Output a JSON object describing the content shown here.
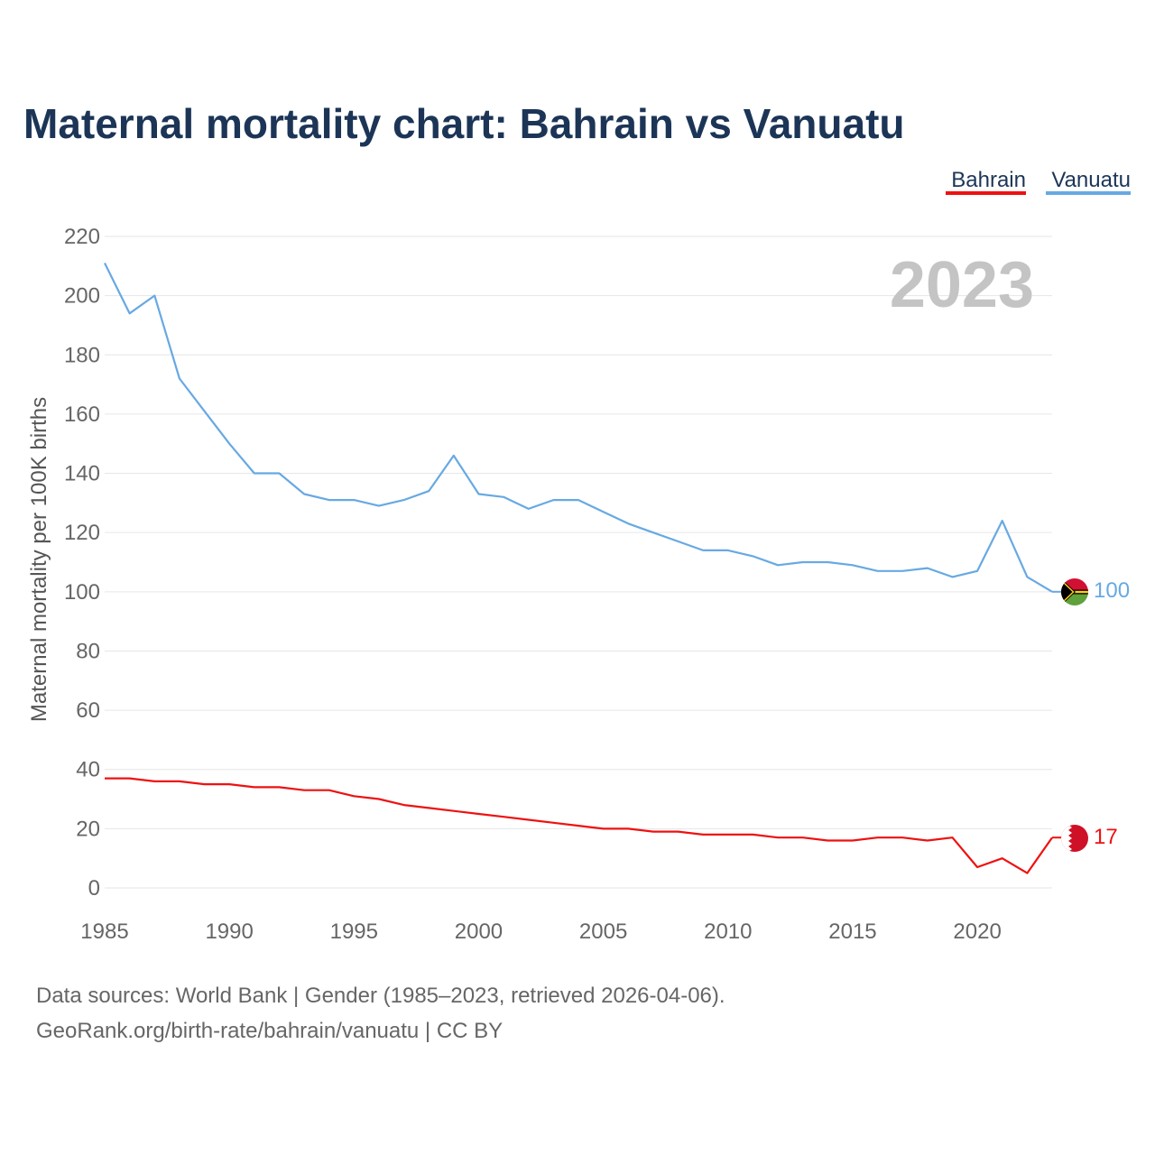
{
  "chart_data": {
    "type": "line",
    "title": "Maternal mortality chart: Bahrain vs Vanuatu",
    "ylabel": "Maternal mortality per 100K births",
    "xlabel": "",
    "ylim": [
      0,
      220
    ],
    "xlim": [
      1985,
      2023
    ],
    "yticks": [
      0,
      20,
      40,
      60,
      80,
      100,
      120,
      140,
      160,
      180,
      200,
      220
    ],
    "xticks": [
      1985,
      1990,
      1995,
      2000,
      2005,
      2010,
      2015,
      2020
    ],
    "year_label": "2023",
    "legend_position": "top-right",
    "x": [
      1985,
      1986,
      1987,
      1988,
      1989,
      1990,
      1991,
      1992,
      1993,
      1994,
      1995,
      1996,
      1997,
      1998,
      1999,
      2000,
      2001,
      2002,
      2003,
      2004,
      2005,
      2006,
      2007,
      2008,
      2009,
      2010,
      2011,
      2012,
      2013,
      2014,
      2015,
      2016,
      2017,
      2018,
      2019,
      2020,
      2021,
      2022,
      2023
    ],
    "series": [
      {
        "name": "Bahrain",
        "color": "#ee1111",
        "end_label": "17",
        "flag": "bahrain-flag",
        "values": [
          37,
          37,
          36,
          36,
          35,
          35,
          34,
          34,
          33,
          33,
          31,
          30,
          28,
          27,
          26,
          25,
          24,
          23,
          22,
          21,
          20,
          20,
          19,
          19,
          18,
          18,
          18,
          17,
          17,
          16,
          16,
          17,
          17,
          16,
          17,
          7,
          10,
          5,
          17
        ]
      },
      {
        "name": "Vanuatu",
        "color": "#67a9e3",
        "end_label": "100",
        "flag": "vanuatu-flag",
        "values": [
          211,
          194,
          200,
          172,
          161,
          150,
          140,
          140,
          133,
          131,
          131,
          129,
          131,
          134,
          146,
          133,
          132,
          128,
          131,
          131,
          127,
          123,
          120,
          117,
          114,
          114,
          112,
          109,
          110,
          110,
          109,
          107,
          107,
          108,
          105,
          107,
          124,
          105,
          100
        ]
      }
    ]
  },
  "source": {
    "line1": "Data sources: World Bank | Gender (1985–2023, retrieved 2026-04-06).",
    "line2": "GeoRank.org/birth-rate/bahrain/vanuatu | CC BY"
  }
}
